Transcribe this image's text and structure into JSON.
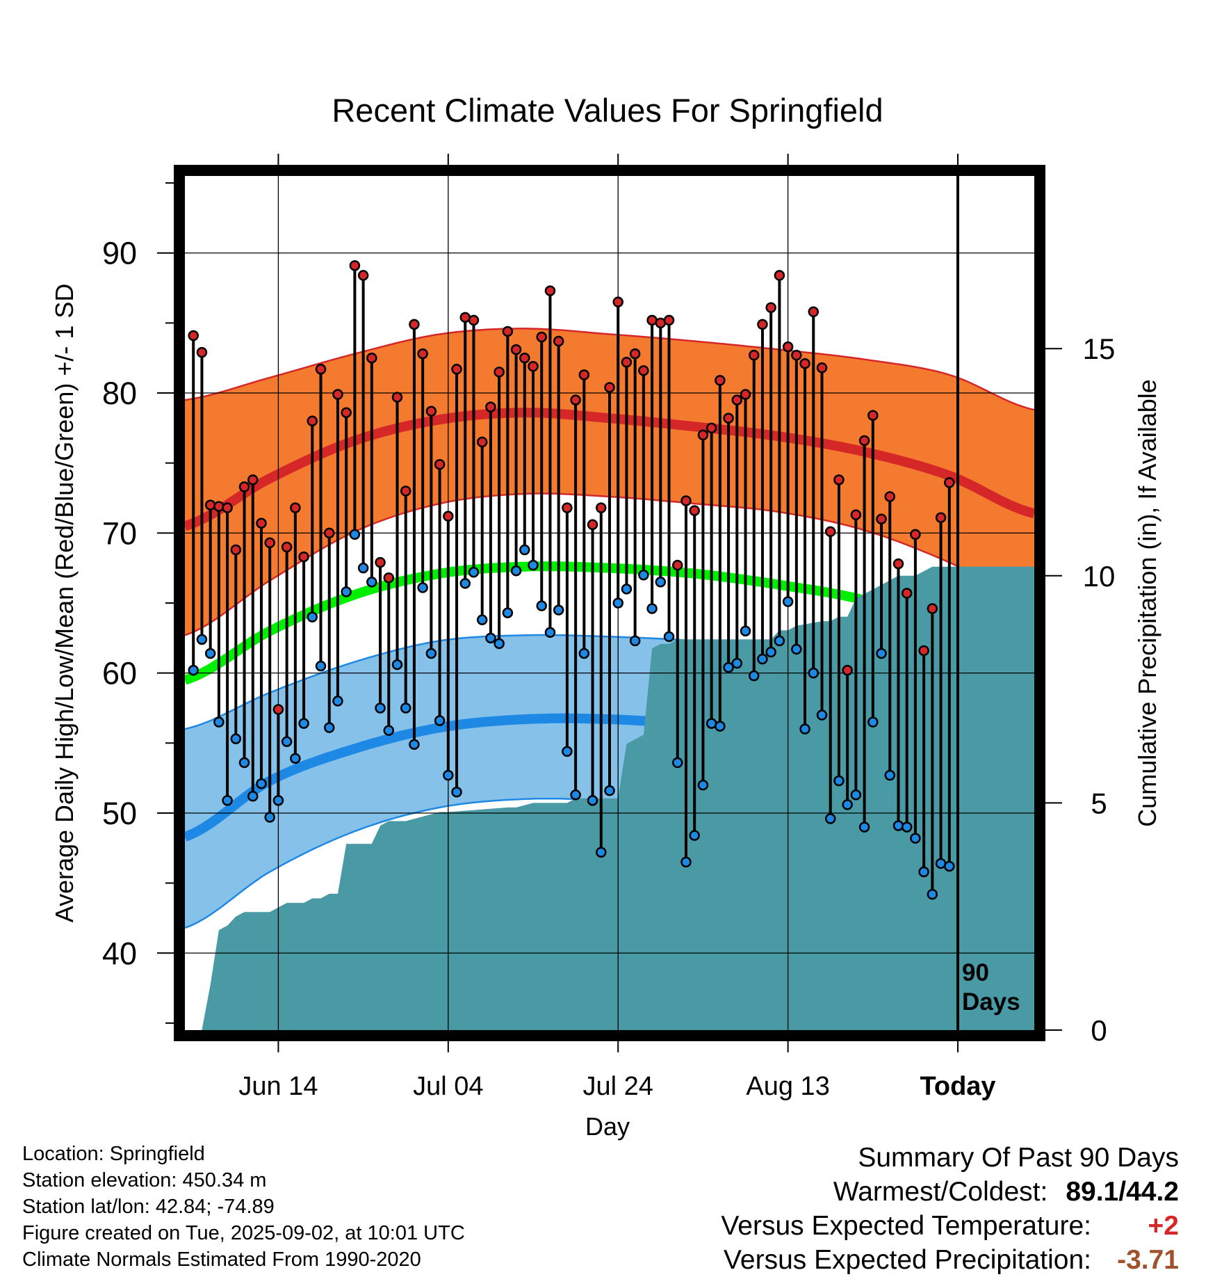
{
  "chart_data": {
    "type": "line",
    "title": "Recent Climate Values For Springfield",
    "xlabel": "Day",
    "ylabel": "Average Daily High/Low/Mean (Red/Blue/Green) +/- 1 SD",
    "y2label": "Cumulative Precipitation (in), If Available",
    "ylim": [
      34.5,
      95.5
    ],
    "y_ticks": [
      40,
      50,
      60,
      70,
      80,
      90
    ],
    "y2lim": [
      0,
      18.8
    ],
    "y2_ticks": [
      0,
      5,
      10,
      15
    ],
    "x_ticks": [
      {
        "day": 11,
        "label": "Jun 14"
      },
      {
        "day": 31,
        "label": "Jul 04"
      },
      {
        "day": 51,
        "label": "Jul 24"
      },
      {
        "day": 71,
        "label": "Aug 13"
      },
      {
        "day": 91,
        "label": "Today"
      }
    ],
    "today_marker": {
      "day": 91,
      "label_line1": "90",
      "label_line2": "Days"
    },
    "normals": {
      "days": [
        0,
        10,
        20,
        30,
        40,
        50,
        60,
        70,
        80,
        90,
        100
      ],
      "high_mean": [
        70.5,
        73.9,
        76.6,
        78.1,
        78.6,
        78.2,
        77.6,
        76.9,
        75.8,
        74.1,
        71.4
      ],
      "high_upper": [
        79.5,
        81.1,
        82.8,
        84.2,
        84.6,
        84.2,
        83.7,
        83.1,
        82.4,
        81.3,
        78.8
      ],
      "high_lower": [
        62.7,
        66.6,
        70.1,
        72.1,
        72.8,
        72.6,
        72.1,
        71.5,
        70.2,
        67.9,
        64.9
      ],
      "low_mean": [
        48.3,
        52.3,
        54.6,
        56.1,
        56.7,
        56.7,
        56.3,
        55.6,
        54.5,
        52.1,
        49.0
      ],
      "low_upper": [
        56.0,
        58.6,
        60.8,
        62.3,
        62.7,
        62.6,
        62.3,
        61.7,
        60.6,
        58.9,
        56.6
      ],
      "low_lower": [
        41.8,
        45.8,
        48.7,
        50.4,
        51.0,
        50.9,
        50.5,
        49.8,
        48.3,
        45.9,
        42.0
      ],
      "mean": [
        59.5,
        63.0,
        65.6,
        67.1,
        67.6,
        67.5,
        67.1,
        66.3,
        65.2,
        63.2,
        60.4
      ]
    },
    "series": [
      {
        "name": "High",
        "color": "#d62728",
        "values": [
          84.1,
          82.9,
          72.0,
          71.9,
          71.8,
          68.8,
          73.3,
          73.8,
          70.7,
          69.3,
          57.4,
          69.0,
          71.8,
          68.3,
          78.0,
          81.7,
          70.0,
          79.9,
          78.6,
          89.1,
          88.4,
          82.5,
          67.9,
          66.8,
          79.7,
          73.0,
          84.9,
          82.8,
          78.7,
          74.9,
          71.2,
          81.7,
          85.4,
          85.2,
          76.5,
          79.0,
          81.5,
          84.4,
          83.1,
          82.5,
          81.9,
          84.0,
          87.3,
          83.7,
          71.8,
          79.5,
          81.3,
          70.6,
          71.8,
          80.4,
          86.5,
          82.2,
          82.8,
          81.6,
          85.2,
          85.0,
          85.2,
          67.7,
          72.3,
          71.6,
          77.0,
          77.5,
          80.9,
          78.2,
          79.5,
          79.9,
          82.7,
          84.9,
          86.1,
          88.4,
          83.3,
          82.7,
          82.1,
          85.8,
          81.8,
          70.1,
          73.8,
          60.2,
          71.3,
          76.6,
          78.4,
          71.0,
          72.6,
          67.8,
          65.7,
          69.9,
          61.6,
          64.6,
          71.1,
          73.6
        ]
      },
      {
        "name": "Low",
        "color": "#1e88e5",
        "values": [
          60.2,
          62.4,
          61.4,
          56.5,
          50.9,
          55.3,
          53.6,
          51.2,
          52.1,
          49.7,
          50.9,
          55.1,
          53.9,
          56.4,
          64.0,
          60.5,
          56.1,
          58.0,
          65.8,
          69.9,
          67.5,
          66.5,
          57.5,
          55.9,
          60.6,
          57.5,
          54.9,
          66.1,
          61.4,
          56.6,
          52.7,
          51.5,
          66.4,
          67.2,
          63.8,
          62.5,
          62.1,
          64.3,
          67.3,
          68.8,
          67.7,
          64.8,
          62.9,
          64.5,
          54.4,
          51.3,
          61.4,
          50.9,
          47.2,
          51.6,
          65.0,
          66.0,
          62.3,
          67.0,
          64.6,
          66.5,
          62.6,
          53.6,
          46.5,
          48.4,
          52.0,
          56.4,
          56.2,
          60.4,
          60.7,
          63.0,
          59.8,
          61.0,
          61.5,
          62.3,
          65.1,
          61.7,
          56.0,
          60.0,
          57.0,
          49.6,
          52.3,
          50.6,
          51.3,
          49.0,
          56.5,
          61.4,
          52.7,
          49.1,
          49.0,
          48.2,
          45.8,
          44.2,
          46.4,
          46.2
        ]
      }
    ],
    "precip": {
      "name": "Cumulative Precipitation",
      "color": "#4a9aa5",
      "days": [
        2,
        3,
        4,
        5,
        6,
        7,
        8,
        10,
        11,
        12,
        14,
        15,
        16,
        17,
        18,
        19,
        22,
        23,
        24,
        26,
        28,
        30,
        31,
        38,
        39,
        41,
        45,
        46,
        47,
        48,
        49,
        50,
        51,
        52,
        53,
        54,
        55,
        56,
        57,
        58,
        59,
        60,
        69,
        70,
        71,
        72,
        75,
        76,
        77,
        78,
        79,
        80,
        81,
        82,
        83,
        84,
        85,
        86,
        87,
        88,
        89,
        90,
        91,
        100
      ],
      "values": [
        0.0,
        1.0,
        2.2,
        2.3,
        2.5,
        2.6,
        2.6,
        2.6,
        2.7,
        2.8,
        2.8,
        2.9,
        2.9,
        3.0,
        3.0,
        4.1,
        4.1,
        4.5,
        4.6,
        4.6,
        4.7,
        4.8,
        4.8,
        4.9,
        4.9,
        5.0,
        5.0,
        5.1,
        5.1,
        5.1,
        5.1,
        5.1,
        5.1,
        6.3,
        6.4,
        6.5,
        8.4,
        8.5,
        8.5,
        8.6,
        8.6,
        8.6,
        8.6,
        8.8,
        8.8,
        8.9,
        9.0,
        9.0,
        9.1,
        9.1,
        9.5,
        9.6,
        9.7,
        9.8,
        9.9,
        10.0,
        10.0,
        10.0,
        10.1,
        10.2,
        10.2,
        10.2,
        10.2,
        10.2
      ]
    }
  },
  "info": {
    "location": "Location: Springfield",
    "elevation": "Station elevation: 450.34 m",
    "latlon": "Station lat/lon: 42.84; -74.89",
    "created": "Figure created on Tue, 2025-09-02, at 10:01 UTC",
    "normals": "Climate Normals Estimated From 1990-2020"
  },
  "summary": {
    "heading": "Summary Of Past 90 Days",
    "warm_cold_label": "Warmest/Coldest:",
    "warm_cold_value": "89.1/44.2",
    "temp_label": "Versus Expected Temperature:",
    "temp_value": "+2",
    "precip_label": "Versus Expected Precipitation:",
    "precip_value": "-3.71"
  }
}
